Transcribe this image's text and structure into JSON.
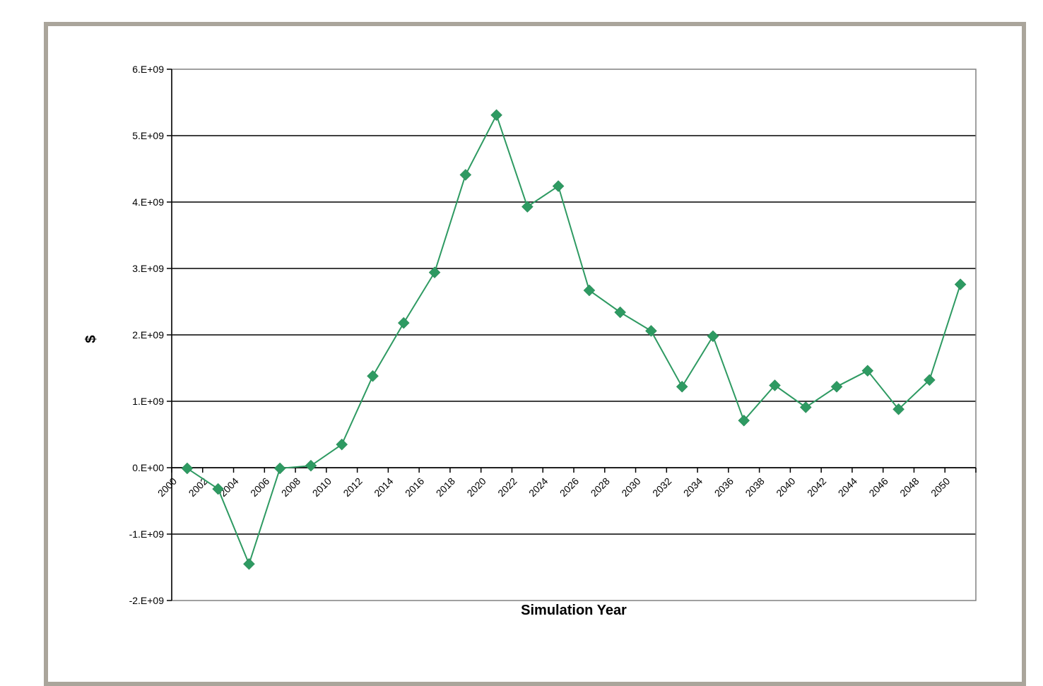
{
  "chart_data": {
    "type": "line",
    "title": "",
    "xlabel": "Simulation Year",
    "ylabel": "$",
    "ylim": [
      -2000000000,
      6000000000
    ],
    "y_ticks": [
      "6.E+09",
      "5.E+09",
      "4.E+09",
      "3.E+09",
      "2.E+09",
      "1.E+09",
      "0.E+00",
      "-1.E+09",
      "-2.E+09"
    ],
    "y_tick_values": [
      6000000000,
      5000000000,
      4000000000,
      3000000000,
      2000000000,
      1000000000,
      0,
      -1000000000,
      -2000000000
    ],
    "x_tick_labels": [
      "2000",
      "2002",
      "2004",
      "2006",
      "2008",
      "2010",
      "2012",
      "2014",
      "2016",
      "2018",
      "2020",
      "2022",
      "2024",
      "2026",
      "2028",
      "2030",
      "2032",
      "2034",
      "2036",
      "2038",
      "2040",
      "2042",
      "2044",
      "2046",
      "2048",
      "2050"
    ],
    "grid": true,
    "legend": "none",
    "series": [
      {
        "color": "#2e9a62",
        "marker": "diamond",
        "values": [
          -10000000,
          -320000000,
          -1450000000,
          -10000000,
          30000000,
          350000000,
          1380000000,
          2180000000,
          2940000000,
          4410000000,
          5310000000,
          3930000000,
          4240000000,
          2670000000,
          2340000000,
          2060000000,
          1220000000,
          1980000000,
          710000000,
          1240000000,
          910000000,
          1220000000,
          1460000000,
          880000000,
          1320000000,
          2760000000
        ]
      }
    ]
  }
}
